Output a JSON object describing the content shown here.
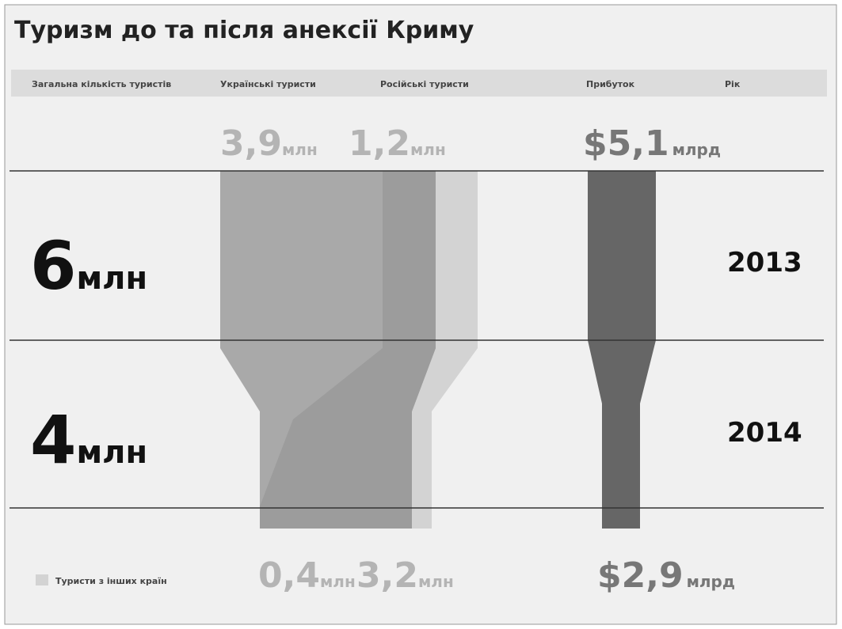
{
  "title": "Туризм до та після анексії Криму",
  "header": [
    "Загальна кількість туристів",
    "Українські туристи",
    "Російські туристи",
    "Прибуток",
    "Рік"
  ],
  "top": {
    "ukrainian": {
      "value": "3,9",
      "unit": "млн"
    },
    "russian": {
      "value": "1,2",
      "unit": "млн"
    },
    "profit": {
      "value": "$5,1",
      "unit": "млрд"
    }
  },
  "rows": [
    {
      "total": "6",
      "unit": "млн",
      "year": "2013"
    },
    {
      "total": "4",
      "unit": "млн",
      "year": "2014"
    }
  ],
  "bottom": {
    "ukrainian": {
      "value": "0,4",
      "unit": "млн"
    },
    "russian": {
      "value": "3,2",
      "unit": "млн"
    },
    "profit": {
      "value": "$2,9",
      "unit": "млрд"
    }
  },
  "legend": "Туристи з інших країн"
}
